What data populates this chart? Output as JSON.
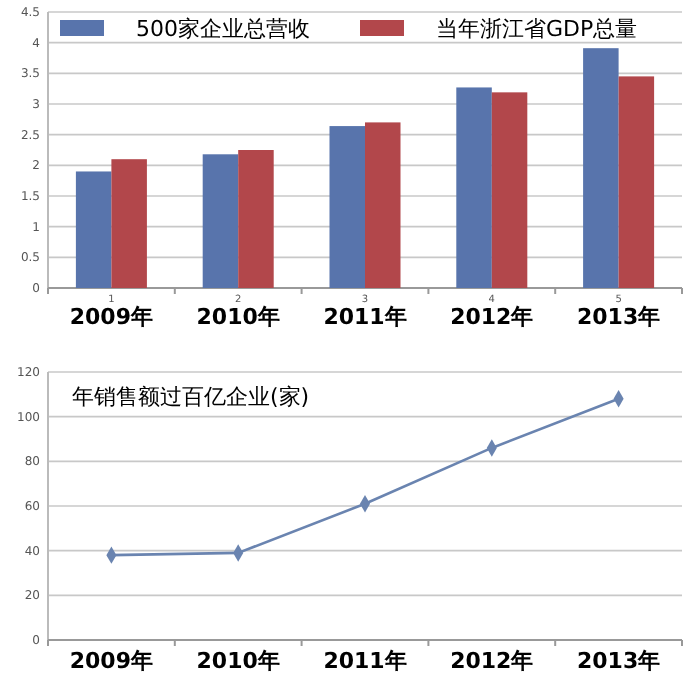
{
  "chart_data": [
    {
      "type": "bar",
      "categories": [
        "1",
        "2",
        "3",
        "4",
        "5"
      ],
      "series": [
        {
          "name": "500家企业总营收",
          "color": "#5874ac",
          "values": [
            1.9,
            2.18,
            2.64,
            3.27,
            3.91
          ]
        },
        {
          "name": "当年浙江省GDP总量",
          "color": "#b2474b",
          "values": [
            2.1,
            2.25,
            2.7,
            3.19,
            3.45
          ]
        }
      ],
      "ylim": [
        0,
        4.5
      ],
      "yticks": [
        0,
        0.5,
        1,
        1.5,
        2,
        2.5,
        3,
        3.5,
        4,
        4.5
      ],
      "grid": "y",
      "legend": "top",
      "annotations": [
        "2009年",
        "2010年",
        "2011年",
        "2012年",
        "2013年"
      ]
    },
    {
      "type": "line",
      "title": "年销售额过百亿企业(家)",
      "categories": [
        "2009年",
        "2010年",
        "2011年",
        "2012年",
        "2013年"
      ],
      "series": [
        {
          "color": "#6a84b0",
          "values": [
            38,
            39,
            61,
            86,
            108
          ]
        }
      ],
      "ylim": [
        0,
        120
      ],
      "yticks": [
        0,
        20,
        40,
        60,
        80,
        100,
        120
      ],
      "grid": "y",
      "marker": "diamond"
    }
  ]
}
